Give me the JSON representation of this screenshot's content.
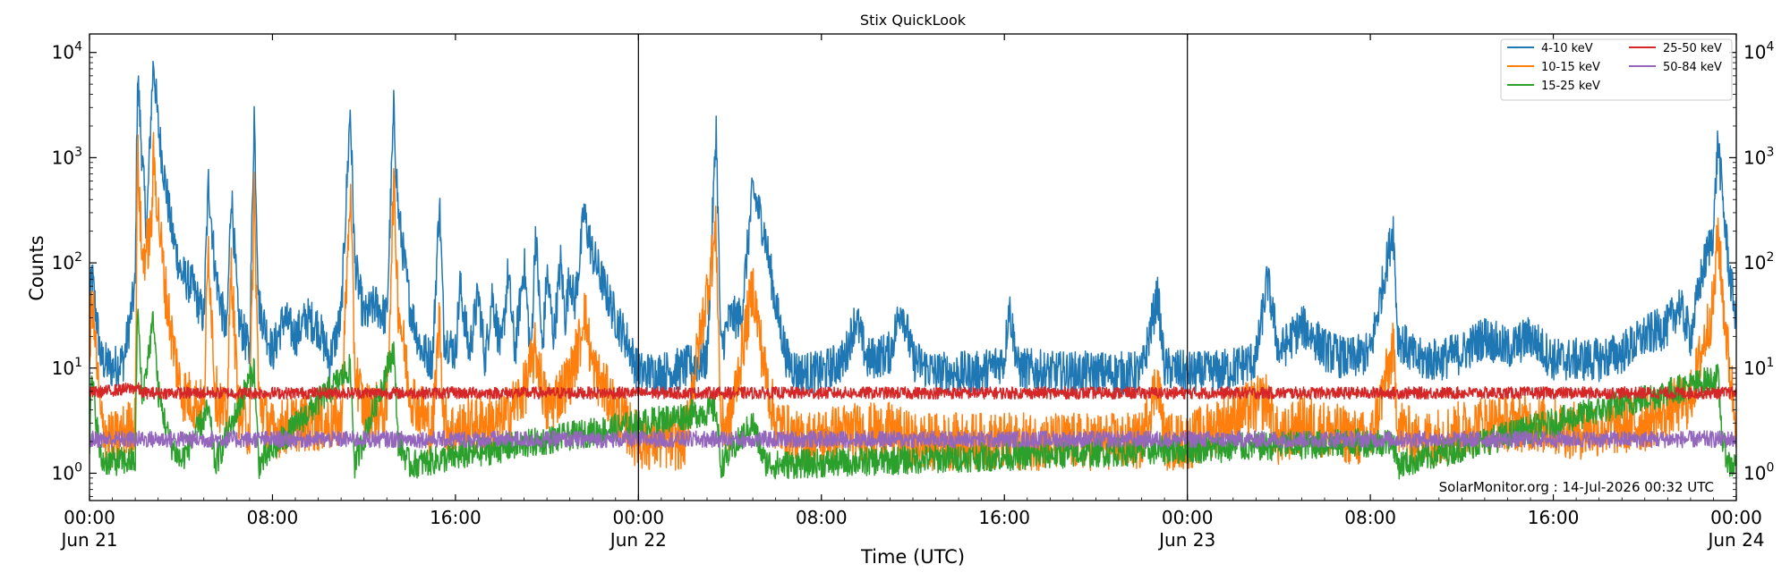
{
  "chart_data": {
    "type": "line",
    "title": "Stix QuickLook",
    "xlabel": "Time (UTC)",
    "ylabel": "Counts",
    "yscale": "log",
    "ylim": [
      0.55,
      15000
    ],
    "xlim_hours": [
      0,
      72
    ],
    "x_tick_labels": [
      {
        "hour": 0,
        "line1": "00:00",
        "line2": "Jun 21"
      },
      {
        "hour": 8,
        "line1": "08:00",
        "line2": ""
      },
      {
        "hour": 16,
        "line1": "16:00",
        "line2": ""
      },
      {
        "hour": 24,
        "line1": "00:00",
        "line2": "Jun 22"
      },
      {
        "hour": 32,
        "line1": "08:00",
        "line2": ""
      },
      {
        "hour": 40,
        "line1": "16:00",
        "line2": ""
      },
      {
        "hour": 48,
        "line1": "00:00",
        "line2": "Jun 23"
      },
      {
        "hour": 56,
        "line1": "08:00",
        "line2": ""
      },
      {
        "hour": 64,
        "line1": "16:00",
        "line2": ""
      },
      {
        "hour": 72,
        "line1": "00:00",
        "line2": "Jun 24"
      }
    ],
    "y_tick_labels": [
      {
        "value": 1,
        "base": "10",
        "exp": "0"
      },
      {
        "value": 10,
        "base": "10",
        "exp": "1"
      },
      {
        "value": 100,
        "base": "10",
        "exp": "2"
      },
      {
        "value": 1000,
        "base": "10",
        "exp": "3"
      },
      {
        "value": 10000,
        "base": "10",
        "exp": "4"
      }
    ],
    "day_dividers_hours": [
      24,
      48
    ],
    "legend_position": "top-right",
    "credit": "SolarMonitor.org : 14-Jul-2026 00:32 UTC",
    "series": [
      {
        "name": "4-10 keV",
        "color": "#1f77b4",
        "baseline": 9,
        "noise": 0.09,
        "points": [
          [
            0,
            30
          ],
          [
            0.1,
            80
          ],
          [
            0.5,
            12
          ],
          [
            1,
            10
          ],
          [
            1.5,
            12
          ],
          [
            2,
            60
          ],
          [
            2.1,
            6500
          ],
          [
            2.3,
            1000
          ],
          [
            2.5,
            200
          ],
          [
            2.7,
            3000
          ],
          [
            2.8,
            8500
          ],
          [
            3,
            2000
          ],
          [
            3.3,
            600
          ],
          [
            3.6,
            200
          ],
          [
            4,
            80
          ],
          [
            4.5,
            60
          ],
          [
            5,
            30
          ],
          [
            5.2,
            600
          ],
          [
            5.5,
            80
          ],
          [
            6,
            20
          ],
          [
            6.2,
            500
          ],
          [
            6.5,
            30
          ],
          [
            7,
            14
          ],
          [
            7.2,
            2800
          ],
          [
            7.4,
            40
          ],
          [
            8,
            14
          ],
          [
            8.5,
            30
          ],
          [
            9,
            20
          ],
          [
            9.5,
            30
          ],
          [
            10,
            25
          ],
          [
            10.5,
            12
          ],
          [
            11,
            30
          ],
          [
            11.4,
            3000
          ],
          [
            11.6,
            100
          ],
          [
            12,
            30
          ],
          [
            12.5,
            40
          ],
          [
            13,
            30
          ],
          [
            13.3,
            2800
          ],
          [
            13.5,
            300
          ],
          [
            14,
            40
          ],
          [
            14.5,
            15
          ],
          [
            15,
            12
          ],
          [
            15.3,
            400
          ],
          [
            15.5,
            20
          ],
          [
            16,
            14
          ],
          [
            16.2,
            60
          ],
          [
            16.6,
            14
          ],
          [
            17,
            50
          ],
          [
            17.3,
            12
          ],
          [
            17.6,
            50
          ],
          [
            18,
            14
          ],
          [
            18.3,
            80
          ],
          [
            18.6,
            14
          ],
          [
            19,
            100
          ],
          [
            19.3,
            12
          ],
          [
            19.5,
            200
          ],
          [
            19.8,
            14
          ],
          [
            20,
            80
          ],
          [
            20.3,
            20
          ],
          [
            20.6,
            100
          ],
          [
            20.8,
            30
          ],
          [
            21,
            80
          ],
          [
            21.2,
            40
          ],
          [
            21.5,
            150
          ],
          [
            21.6,
            300
          ],
          [
            22,
            120
          ],
          [
            22.5,
            60
          ],
          [
            23,
            30
          ],
          [
            23.5,
            18
          ],
          [
            24,
            9
          ],
          [
            25,
            9
          ],
          [
            26,
            10
          ],
          [
            27,
            12
          ],
          [
            27.4,
            2000
          ],
          [
            27.6,
            15
          ],
          [
            28,
            30
          ],
          [
            28.5,
            30
          ],
          [
            29,
            500
          ],
          [
            29.5,
            200
          ],
          [
            30,
            40
          ],
          [
            30.5,
            12
          ],
          [
            31,
            9
          ],
          [
            32,
            9
          ],
          [
            33,
            12
          ],
          [
            33.5,
            30
          ],
          [
            34,
            12
          ],
          [
            35,
            14
          ],
          [
            35.5,
            40
          ],
          [
            36,
            12
          ],
          [
            37,
            9
          ],
          [
            39,
            9
          ],
          [
            40,
            12
          ],
          [
            40.2,
            40
          ],
          [
            40.6,
            10
          ],
          [
            42,
            9
          ],
          [
            44,
            9
          ],
          [
            46,
            9
          ],
          [
            46.7,
            50
          ],
          [
            47,
            10
          ],
          [
            48,
            9
          ],
          [
            49,
            9
          ],
          [
            50,
            10
          ],
          [
            51,
            12
          ],
          [
            51.5,
            70
          ],
          [
            52,
            14
          ],
          [
            53,
            25
          ],
          [
            53.5,
            20
          ],
          [
            54,
            15
          ],
          [
            55,
            12
          ],
          [
            56,
            14
          ],
          [
            57,
            220
          ],
          [
            57.2,
            20
          ],
          [
            58,
            12
          ],
          [
            59,
            12
          ],
          [
            60,
            14
          ],
          [
            61,
            20
          ],
          [
            62,
            15
          ],
          [
            63,
            20
          ],
          [
            64,
            12
          ],
          [
            65,
            12
          ],
          [
            66,
            12
          ],
          [
            67,
            14
          ],
          [
            68,
            20
          ],
          [
            69,
            25
          ],
          [
            69.5,
            40
          ],
          [
            70,
            20
          ],
          [
            70.5,
            80
          ],
          [
            71,
            200
          ],
          [
            71.2,
            1500
          ],
          [
            71.4,
            400
          ],
          [
            71.7,
            80
          ],
          [
            72,
            30
          ]
        ]
      },
      {
        "name": "10-15 keV",
        "color": "#ff7f0e",
        "baseline": 1.9,
        "noise": 0.12,
        "points": [
          [
            0,
            10
          ],
          [
            0.1,
            50
          ],
          [
            0.5,
            3
          ],
          [
            1,
            2
          ],
          [
            2,
            3
          ],
          [
            2.1,
            1200
          ],
          [
            2.3,
            100
          ],
          [
            2.7,
            200
          ],
          [
            2.8,
            1000
          ],
          [
            3,
            300
          ],
          [
            3.3,
            60
          ],
          [
            3.6,
            20
          ],
          [
            4,
            6
          ],
          [
            5,
            4
          ],
          [
            5.2,
            150
          ],
          [
            5.5,
            6
          ],
          [
            6,
            3
          ],
          [
            6.2,
            100
          ],
          [
            6.5,
            4
          ],
          [
            7,
            2.5
          ],
          [
            7.2,
            500
          ],
          [
            7.4,
            5
          ],
          [
            8,
            2.5
          ],
          [
            9,
            3
          ],
          [
            10,
            3
          ],
          [
            11,
            3
          ],
          [
            11.4,
            500
          ],
          [
            11.6,
            10
          ],
          [
            12,
            4
          ],
          [
            13,
            4
          ],
          [
            13.3,
            600
          ],
          [
            13.5,
            40
          ],
          [
            14,
            6
          ],
          [
            15,
            2.5
          ],
          [
            15.3,
            30
          ],
          [
            15.5,
            3
          ],
          [
            16,
            2.5
          ],
          [
            17,
            3
          ],
          [
            18,
            3
          ],
          [
            19,
            6
          ],
          [
            19.5,
            15
          ],
          [
            20,
            4
          ],
          [
            21,
            8
          ],
          [
            21.5,
            20
          ],
          [
            21.6,
            40
          ],
          [
            22,
            10
          ],
          [
            23,
            4
          ],
          [
            24,
            2
          ],
          [
            26,
            2
          ],
          [
            27.4,
            200
          ],
          [
            27.6,
            3
          ],
          [
            28,
            3
          ],
          [
            29,
            60
          ],
          [
            29.5,
            10
          ],
          [
            30,
            3
          ],
          [
            31,
            2
          ],
          [
            33,
            2.5
          ],
          [
            35,
            2.5
          ],
          [
            36,
            2
          ],
          [
            40,
            2
          ],
          [
            46,
            2
          ],
          [
            46.7,
            8
          ],
          [
            47,
            2
          ],
          [
            48,
            2
          ],
          [
            51.5,
            5
          ],
          [
            52,
            2
          ],
          [
            53,
            3
          ],
          [
            56,
            2
          ],
          [
            57,
            15
          ],
          [
            57.2,
            3
          ],
          [
            58,
            2
          ],
          [
            61,
            3
          ],
          [
            63,
            3
          ],
          [
            65,
            2.5
          ],
          [
            68,
            3
          ],
          [
            69,
            4
          ],
          [
            70,
            5
          ],
          [
            70.5,
            15
          ],
          [
            71,
            40
          ],
          [
            71.2,
            200
          ],
          [
            71.4,
            50
          ],
          [
            71.7,
            10
          ],
          [
            72,
            3
          ]
        ]
      },
      {
        "name": "15-25 keV",
        "color": "#2ca02c",
        "baseline": 1.15,
        "noise": 0.06,
        "points": [
          [
            0,
            2
          ],
          [
            0.1,
            8
          ],
          [
            0.5,
            1.3
          ],
          [
            2,
            1.3
          ],
          [
            2.1,
            40
          ],
          [
            2.3,
            5
          ],
          [
            2.8,
            30
          ],
          [
            3,
            6
          ],
          [
            3.5,
            2
          ],
          [
            4,
            1.3
          ],
          [
            5.2,
            4
          ],
          [
            5.5,
            1.2
          ],
          [
            7.2,
            10
          ],
          [
            7.4,
            1.2
          ],
          [
            11.4,
            10
          ],
          [
            11.6,
            1.2
          ],
          [
            13.3,
            15
          ],
          [
            13.5,
            2
          ],
          [
            14,
            1.2
          ],
          [
            27.4,
            4
          ],
          [
            27.6,
            1.2
          ],
          [
            29,
            3
          ],
          [
            29.5,
            1.3
          ],
          [
            30,
            1.2
          ],
          [
            57,
            2
          ],
          [
            57.2,
            1.2
          ],
          [
            71.2,
            8
          ],
          [
            71.4,
            2
          ],
          [
            71.7,
            1.2
          ],
          [
            72,
            1.2
          ]
        ]
      },
      {
        "name": "25-50 keV",
        "color": "#d62728",
        "baseline": 5.8,
        "noise": 0.025,
        "points": [
          [
            0,
            5.8
          ],
          [
            2.1,
            6.5
          ],
          [
            2.3,
            5.8
          ],
          [
            72,
            5.8
          ]
        ]
      },
      {
        "name": "50-84 keV",
        "color": "#9467bd",
        "baseline": 2.1,
        "noise": 0.035,
        "points": [
          [
            0,
            2.1
          ],
          [
            72,
            2.1
          ]
        ]
      }
    ]
  }
}
